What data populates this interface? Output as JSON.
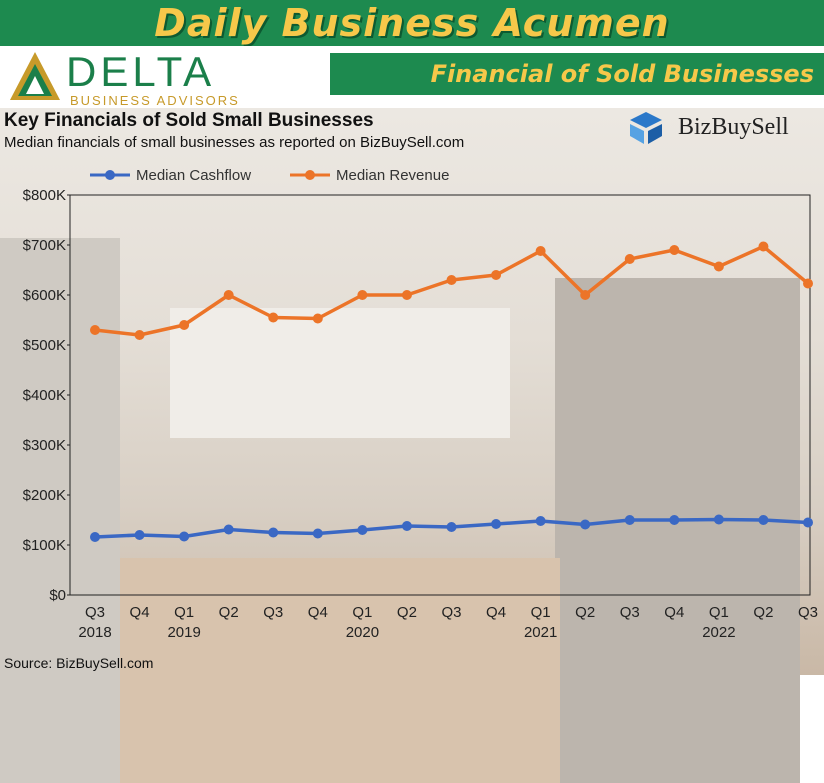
{
  "banner": {
    "title": "Daily Business Acumen"
  },
  "brand": {
    "name": "DELTA",
    "tagline": "BUSINESS ADVISORS"
  },
  "section_title": "Financial of Sold Businesses",
  "source_logo": {
    "name": "BizBuySell"
  },
  "source_note": "Source: BizBuySell.com",
  "colors": {
    "banner": "#1d8a4f",
    "banner_text": "#f6c84a",
    "cashflow": "#3a68c4",
    "revenue": "#ec7428"
  },
  "chart_data": {
    "type": "line",
    "title": "Key Financials of Sold Small Businesses",
    "subtitle": "Median financials of small businesses as reported on BizBuySell.com",
    "categories": [
      "Q3 2018",
      "Q4",
      "Q1 2019",
      "Q2",
      "Q3",
      "Q4",
      "Q1 2020",
      "Q2",
      "Q3",
      "Q4",
      "Q1 2021",
      "Q2",
      "Q3",
      "Q4",
      "Q1 2022",
      "Q2",
      "Q3"
    ],
    "quarter_labels": [
      "Q3",
      "Q4",
      "Q1",
      "Q2",
      "Q3",
      "Q4",
      "Q1",
      "Q2",
      "Q3",
      "Q4",
      "Q1",
      "Q2",
      "Q3",
      "Q4",
      "Q1",
      "Q2",
      "Q3"
    ],
    "year_labels": [
      "2018",
      "",
      "2019",
      "",
      "",
      "",
      "2020",
      "",
      "",
      "",
      "2021",
      "",
      "",
      "",
      "2022",
      "",
      ""
    ],
    "series": [
      {
        "name": "Median Cashflow",
        "color": "#3a68c4",
        "values": [
          116000,
          120000,
          117000,
          131000,
          125000,
          123000,
          130000,
          138000,
          136000,
          142000,
          148000,
          141000,
          150000,
          150000,
          151000,
          150000,
          145000
        ]
      },
      {
        "name": "Median Revenue",
        "color": "#ec7428",
        "values": [
          530000,
          520000,
          540000,
          600000,
          555000,
          553000,
          600000,
          600000,
          630000,
          640000,
          688000,
          600000,
          672000,
          690000,
          657000,
          697000,
          623000
        ]
      }
    ],
    "y_ticks": [
      "$0",
      "$100K",
      "$200K",
      "$300K",
      "$400K",
      "$500K",
      "$600K",
      "$700K",
      "$800K"
    ],
    "ylim": [
      0,
      800000
    ],
    "legend": "top",
    "grid": false
  }
}
